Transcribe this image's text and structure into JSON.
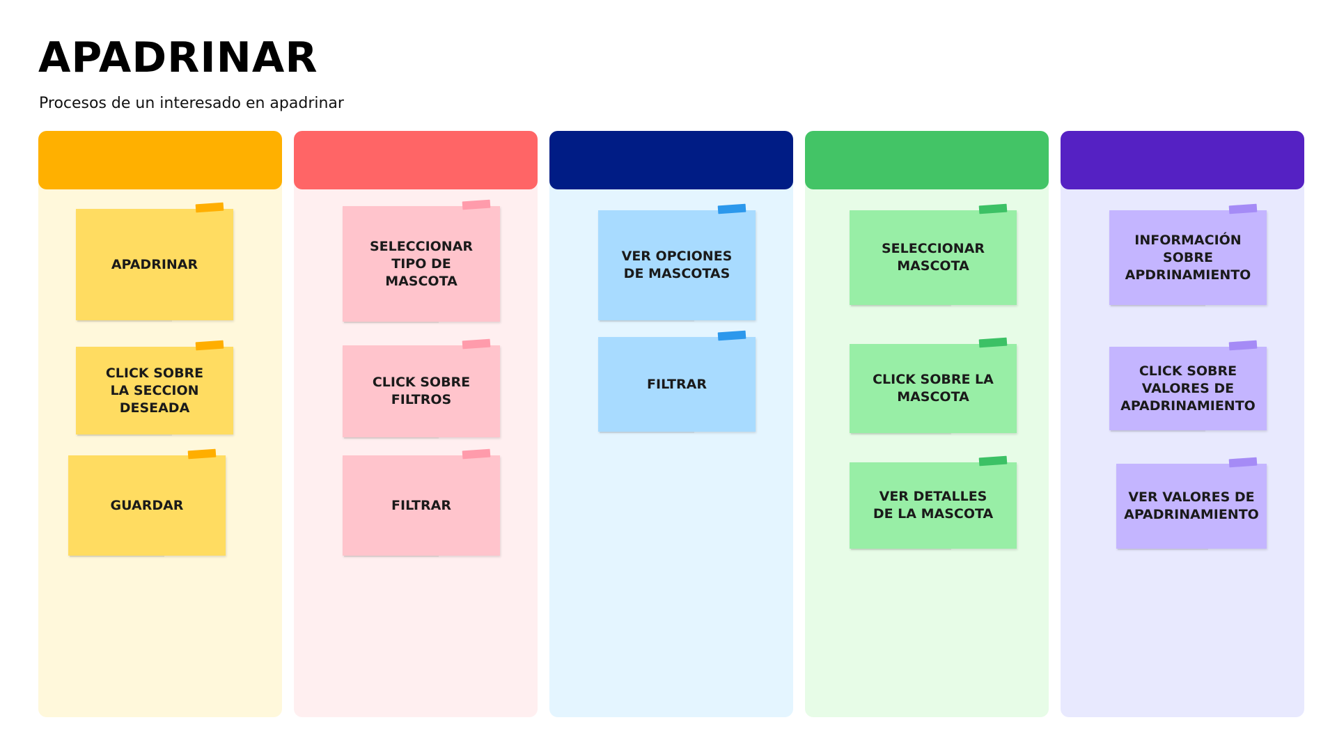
{
  "title": "APADRINAR",
  "subtitle": "Procesos de un interesado en apadrinar",
  "columns": [
    {
      "header_color": "#FFB000",
      "body_color": "#FFF8DB",
      "note_color": "#FFDC61",
      "tape_color": "#FFAE00",
      "notes": [
        {
          "label": "APADRINAR"
        },
        {
          "label": "CLICK SOBRE\nLA SECCION\nDESEADA"
        },
        {
          "label": "GUARDAR"
        }
      ]
    },
    {
      "header_color": "#FF6566",
      "body_color": "#FFEFF0",
      "note_color": "#FFC4CC",
      "tape_color": "#FF9BAB",
      "notes": [
        {
          "label": "SELECCIONAR\nTIPO DE\nMASCOTA"
        },
        {
          "label": "CLICK SOBRE\nFILTROS"
        },
        {
          "label": "FILTRAR"
        }
      ]
    },
    {
      "header_color": "#001C85",
      "body_color": "#E4F5FF",
      "note_color": "#A8DBFF",
      "tape_color": "#2C98EC",
      "notes": [
        {
          "label": "VER OPCIONES\nDE MASCOTAS"
        },
        {
          "label": "FILTRAR"
        }
      ]
    },
    {
      "header_color": "#43C466",
      "body_color": "#E7FCE7",
      "note_color": "#98EEA6",
      "tape_color": "#3CC165",
      "notes": [
        {
          "label": "SELECCIONAR\nMASCOTA"
        },
        {
          "label": "CLICK SOBRE LA\nMASCOTA"
        },
        {
          "label": "VER DETALLES\nDE LA MASCOTA"
        }
      ]
    },
    {
      "header_color": "#5521C3",
      "body_color": "#E8E9FE",
      "note_color": "#C4B5FF",
      "tape_color": "#A58BF6",
      "notes": [
        {
          "label": "INFORMACIÓN\nSOBRE\nAPDRINAMIENTO"
        },
        {
          "label": "CLICK SOBRE\nVALORES DE\nAPADRINAMIENTO"
        },
        {
          "label": "VER VALORES DE\nAPADRINAMIENTO"
        }
      ]
    }
  ]
}
